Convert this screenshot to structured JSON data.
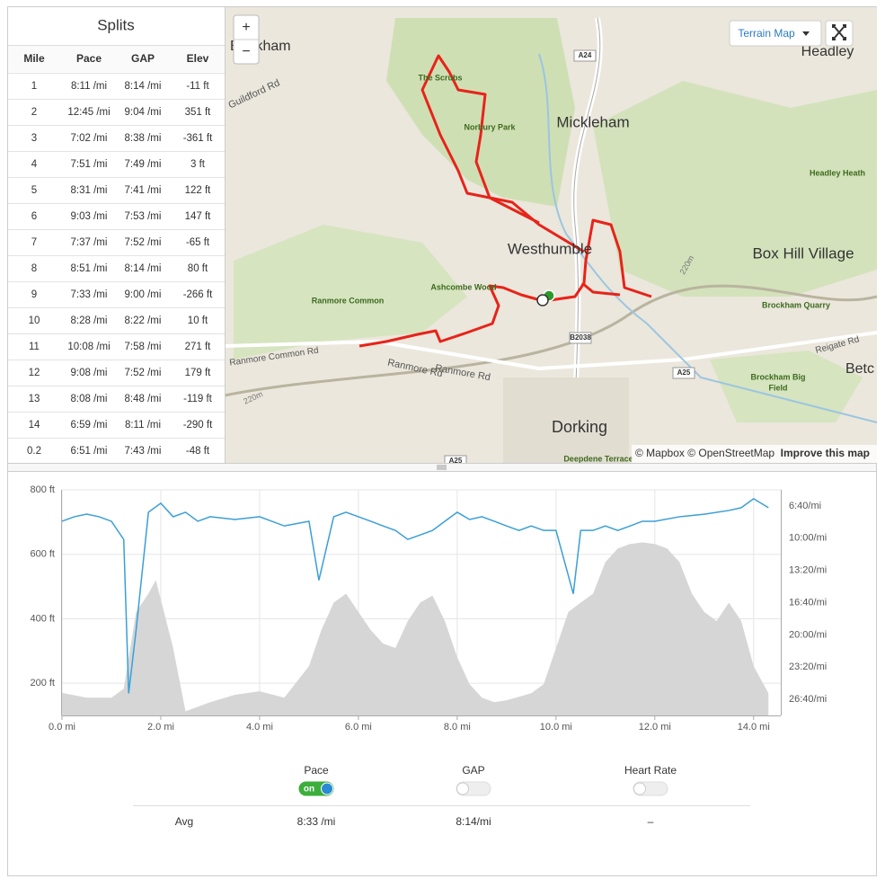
{
  "splits": {
    "title": "Splits",
    "columns": [
      "Mile",
      "Pace",
      "GAP",
      "Elev"
    ],
    "rows": [
      [
        "1",
        "8:11 /mi",
        "8:14 /mi",
        "-11 ft"
      ],
      [
        "2",
        "12:45 /mi",
        "9:04 /mi",
        "351 ft"
      ],
      [
        "3",
        "7:02 /mi",
        "8:38 /mi",
        "-361 ft"
      ],
      [
        "4",
        "7:51 /mi",
        "7:49 /mi",
        "3 ft"
      ],
      [
        "5",
        "8:31 /mi",
        "7:41 /mi",
        "122 ft"
      ],
      [
        "6",
        "9:03 /mi",
        "7:53 /mi",
        "147 ft"
      ],
      [
        "7",
        "7:37 /mi",
        "7:52 /mi",
        "-65 ft"
      ],
      [
        "8",
        "8:51 /mi",
        "8:14 /mi",
        "80 ft"
      ],
      [
        "9",
        "7:33 /mi",
        "9:00 /mi",
        "-266 ft"
      ],
      [
        "10",
        "8:28 /mi",
        "8:22 /mi",
        "10 ft"
      ],
      [
        "11",
        "10:08 /mi",
        "7:58 /mi",
        "271 ft"
      ],
      [
        "12",
        "9:08 /mi",
        "7:52 /mi",
        "179 ft"
      ],
      [
        "13",
        "8:08 /mi",
        "8:48 /mi",
        "-119 ft"
      ],
      [
        "14",
        "6:59 /mi",
        "8:11 /mi",
        "-290 ft"
      ],
      [
        "0.2",
        "6:51 /mi",
        "7:43 /mi",
        "-48 ft"
      ]
    ]
  },
  "map": {
    "zoom_in": "+",
    "zoom_out": "−",
    "layer": "Terrain Map",
    "attribution": "© Mapbox © OpenStreetMap",
    "improve": "Improve this map",
    "labels": [
      "Bookham",
      "The Scrubs",
      "Norbury Park",
      "Mickleham",
      "Westhumble",
      "Box Hill Village",
      "Headley Heath",
      "Headley",
      "Ranmore Common",
      "Ashcombe Wood",
      "Brockham Quarry",
      "Brockham Big",
      "Field",
      "Dorking",
      "Deepdene Terrace",
      "Betc",
      "Guildford Rd",
      "Ranmore Common Rd",
      "Ranmore Rd",
      "Ranmore Rd",
      "Reigate Rd",
      "A24",
      "B2038",
      "A25",
      "A25",
      "220m",
      "220m"
    ]
  },
  "chart_data": {
    "type": "line",
    "xlim": [
      0,
      14.55
    ],
    "xticks": [
      {
        "value": 0,
        "label": "0.0 mi"
      },
      {
        "value": 2,
        "label": "2.0 mi"
      },
      {
        "value": 4,
        "label": "4.0 mi"
      },
      {
        "value": 6,
        "label": "6.0 mi"
      },
      {
        "value": 8,
        "label": "8.0 mi"
      },
      {
        "value": 10,
        "label": "10.0 mi"
      },
      {
        "value": 12,
        "label": "12.0 mi"
      },
      {
        "value": 14,
        "label": "14.0 mi"
      }
    ],
    "ylim": [
      100,
      800
    ],
    "yticks": [
      {
        "value": 200,
        "label": "200 ft"
      },
      {
        "value": 400,
        "label": "400 ft"
      },
      {
        "value": 600,
        "label": "600 ft"
      },
      {
        "value": 800,
        "label": "800 ft"
      }
    ],
    "y2lim": [
      1700,
      300
    ],
    "y2ticks": [
      {
        "value": 400,
        "label": "6:40/mi"
      },
      {
        "value": 600,
        "label": "10:00/mi"
      },
      {
        "value": 800,
        "label": "13:20/mi"
      },
      {
        "value": 1000,
        "label": "16:40/mi"
      },
      {
        "value": 1200,
        "label": "20:00/mi"
      },
      {
        "value": 1400,
        "label": "23:20/mi"
      },
      {
        "value": 1600,
        "label": "26:40/mi"
      }
    ],
    "grid": true,
    "series": [
      {
        "kind": "area",
        "color": "#d6d6d6",
        "x": [
          0,
          0.5,
          1,
          1.25,
          1.5,
          1.75,
          1.9,
          2.25,
          2.5,
          2.75,
          3,
          3.5,
          4,
          4.5,
          5,
          5.25,
          5.5,
          5.75,
          6,
          6.25,
          6.5,
          6.75,
          7,
          7.25,
          7.5,
          7.75,
          8,
          8.25,
          8.5,
          8.75,
          9,
          9.25,
          9.5,
          9.75,
          10,
          10.25,
          10.5,
          10.75,
          11,
          11.25,
          11.5,
          11.75,
          12,
          12.25,
          12.5,
          12.75,
          13,
          13.25,
          13.5,
          13.75,
          14,
          14.3
        ],
        "values": [
          170,
          155,
          155,
          183,
          421,
          478,
          520,
          309,
          113,
          127,
          141,
          164,
          175,
          155,
          253,
          365,
          450,
          478,
          421,
          365,
          323,
          309,
          393,
          450,
          472,
          393,
          281,
          197,
          155,
          141,
          147,
          158,
          169,
          197,
          309,
          421,
          450,
          478,
          576,
          618,
          632,
          637,
          632,
          618,
          576,
          478,
          421,
          393,
          450,
          393,
          253,
          169
        ]
      },
      {
        "kind": "line",
        "axis": "y2",
        "color": "#3a9fd6",
        "x": [
          0,
          0.25,
          0.5,
          0.75,
          1,
          1.25,
          1.35,
          1.5,
          1.75,
          2,
          2.25,
          2.5,
          2.75,
          3,
          3.5,
          4,
          4.5,
          5,
          5.2,
          5.5,
          5.75,
          6,
          6.25,
          6.5,
          6.75,
          7,
          7.25,
          7.5,
          7.75,
          8,
          8.25,
          8.5,
          8.75,
          9,
          9.25,
          9.5,
          9.75,
          10,
          10.35,
          10.5,
          10.75,
          11,
          11.25,
          11.5,
          11.75,
          12,
          12.5,
          13,
          13.5,
          13.75,
          14,
          14.3
        ],
        "values": [
          495,
          467,
          451,
          467,
          495,
          608,
          1563,
          1170,
          439,
          383,
          467,
          439,
          495,
          467,
          484,
          467,
          524,
          495,
          861,
          467,
          439,
          467,
          495,
          524,
          552,
          608,
          580,
          552,
          495,
          439,
          484,
          467,
          495,
          524,
          552,
          524,
          552,
          552,
          945,
          552,
          552,
          524,
          552,
          524,
          495,
          495,
          467,
          451,
          428,
          411,
          355,
          411
        ]
      }
    ]
  },
  "toggles": [
    {
      "label": "Pace",
      "state": "on"
    },
    {
      "label": "GAP"
    },
    {
      "label": "Heart Rate"
    }
  ],
  "summary": {
    "label": "Avg",
    "values": [
      "8:33 /mi",
      "8:14/mi",
      "–"
    ]
  }
}
